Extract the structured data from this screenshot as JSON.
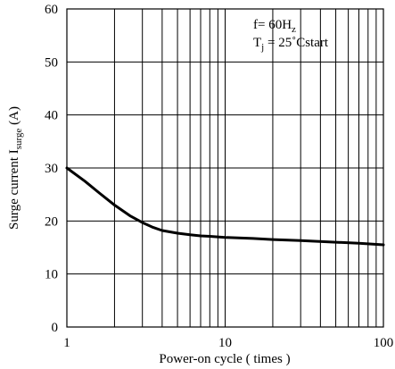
{
  "chart_data": {
    "type": "line",
    "xlabel": "Power-on cycle ( times )",
    "ylabel": "Surge current I",
    "ylabel_subscript": "surge",
    "ylabel_unit": "(A)",
    "xscale": "log",
    "xlim": [
      1,
      100
    ],
    "ylim": [
      0,
      60
    ],
    "x_ticks": [
      1,
      10,
      100
    ],
    "x_tick_labels": [
      "1",
      "10",
      "100"
    ],
    "y_ticks": [
      0,
      10,
      20,
      30,
      40,
      50,
      60
    ],
    "y_tick_labels": [
      "0",
      "10",
      "20",
      "30",
      "40",
      "50",
      "60"
    ],
    "grid": true,
    "annotations": {
      "freq": "f=  60H",
      "freq_sub": "z",
      "temp_main": "T",
      "temp_sub": "j",
      "temp_value": " =  25˚Cstart"
    },
    "series": [
      {
        "x": [
          1,
          1.3,
          1.6,
          2,
          2.5,
          3,
          3.5,
          4,
          5,
          6,
          7,
          8,
          10,
          15,
          20,
          30,
          50,
          70,
          100
        ],
        "y": [
          30,
          27.5,
          25.3,
          23.0,
          21.0,
          19.7,
          18.8,
          18.2,
          17.7,
          17.4,
          17.2,
          17.1,
          16.9,
          16.7,
          16.5,
          16.3,
          16.0,
          15.8,
          15.5
        ]
      }
    ]
  },
  "colors": {
    "line": "#000000",
    "grid": "#000000",
    "background": "#ffffff"
  }
}
